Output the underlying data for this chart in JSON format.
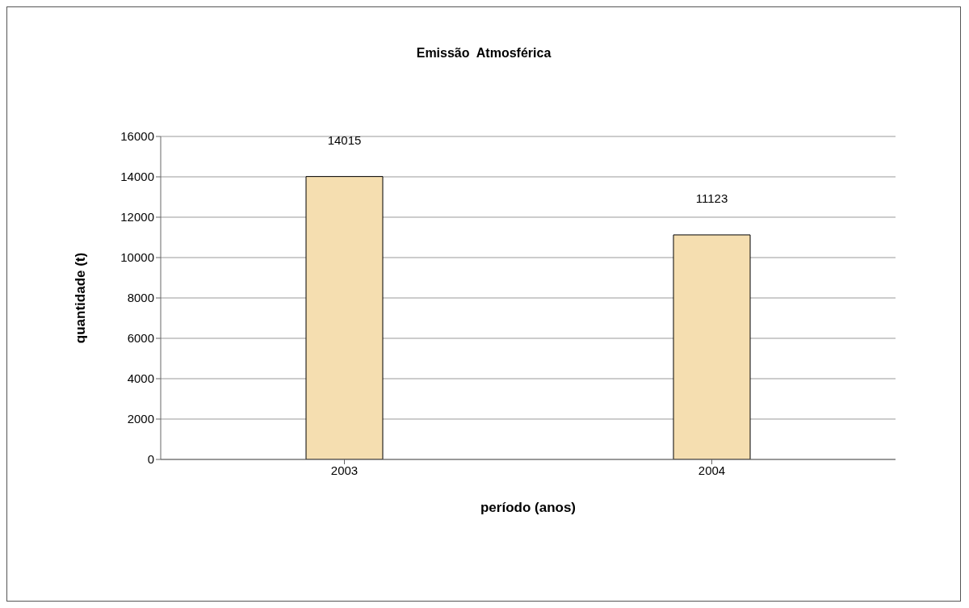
{
  "chart_data": {
    "type": "bar",
    "title": "Emissão  Atmosférica",
    "xlabel": "período (anos)",
    "ylabel": "quantidade (t)",
    "categories": [
      "2003",
      "2004"
    ],
    "values": [
      14015,
      11123
    ],
    "color": "#f5deb0",
    "ylim": [
      0,
      16000
    ],
    "yticks": [
      0,
      2000,
      4000,
      6000,
      8000,
      10000,
      12000,
      14000,
      16000
    ],
    "grid": "y",
    "data_labels": true
  }
}
